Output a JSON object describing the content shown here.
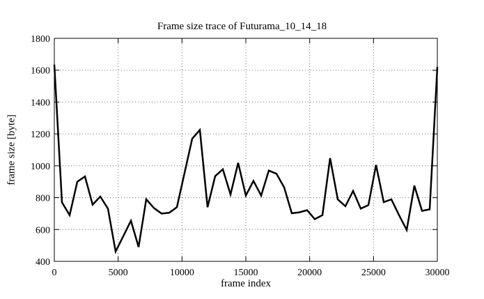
{
  "window": {
    "background": "#ffffff",
    "foreground": "#000000"
  },
  "chart_data": {
    "type": "line",
    "title": "Frame size trace of Futurama_10_14_18",
    "xlabel": "frame index",
    "ylabel": "frame size [byte]",
    "xlim": [
      0,
      30000
    ],
    "ylim": [
      400,
      1800
    ],
    "xticks": [
      0,
      5000,
      10000,
      15000,
      20000,
      25000,
      30000
    ],
    "yticks": [
      400,
      600,
      800,
      1000,
      1200,
      1400,
      1600,
      1800
    ],
    "grid": "dotted",
    "legend": "none",
    "line_color": "#000000",
    "grid_color": "#707070",
    "x": [
      0,
      600,
      1200,
      1800,
      2400,
      3000,
      3600,
      4200,
      4800,
      5400,
      6000,
      6600,
      7200,
      7800,
      8400,
      9000,
      9600,
      10200,
      10800,
      11400,
      12000,
      12600,
      13200,
      13800,
      14400,
      15000,
      15600,
      16200,
      16800,
      17400,
      18000,
      18600,
      19200,
      19800,
      20400,
      21000,
      21600,
      22200,
      22800,
      23400,
      24000,
      24600,
      25200,
      25800,
      26400,
      27000,
      27600,
      28200,
      28800,
      29400,
      30000
    ],
    "values": [
      1635,
      770,
      690,
      900,
      933,
      756,
      807,
      731,
      462,
      558,
      655,
      490,
      790,
      735,
      700,
      705,
      740,
      955,
      1170,
      1225,
      740,
      935,
      978,
      820,
      1018,
      813,
      905,
      813,
      970,
      950,
      865,
      702,
      708,
      721,
      665,
      690,
      1048,
      789,
      746,
      842,
      731,
      753,
      1005,
      772,
      789,
      690,
      597,
      875,
      717,
      727,
      1620
    ]
  }
}
